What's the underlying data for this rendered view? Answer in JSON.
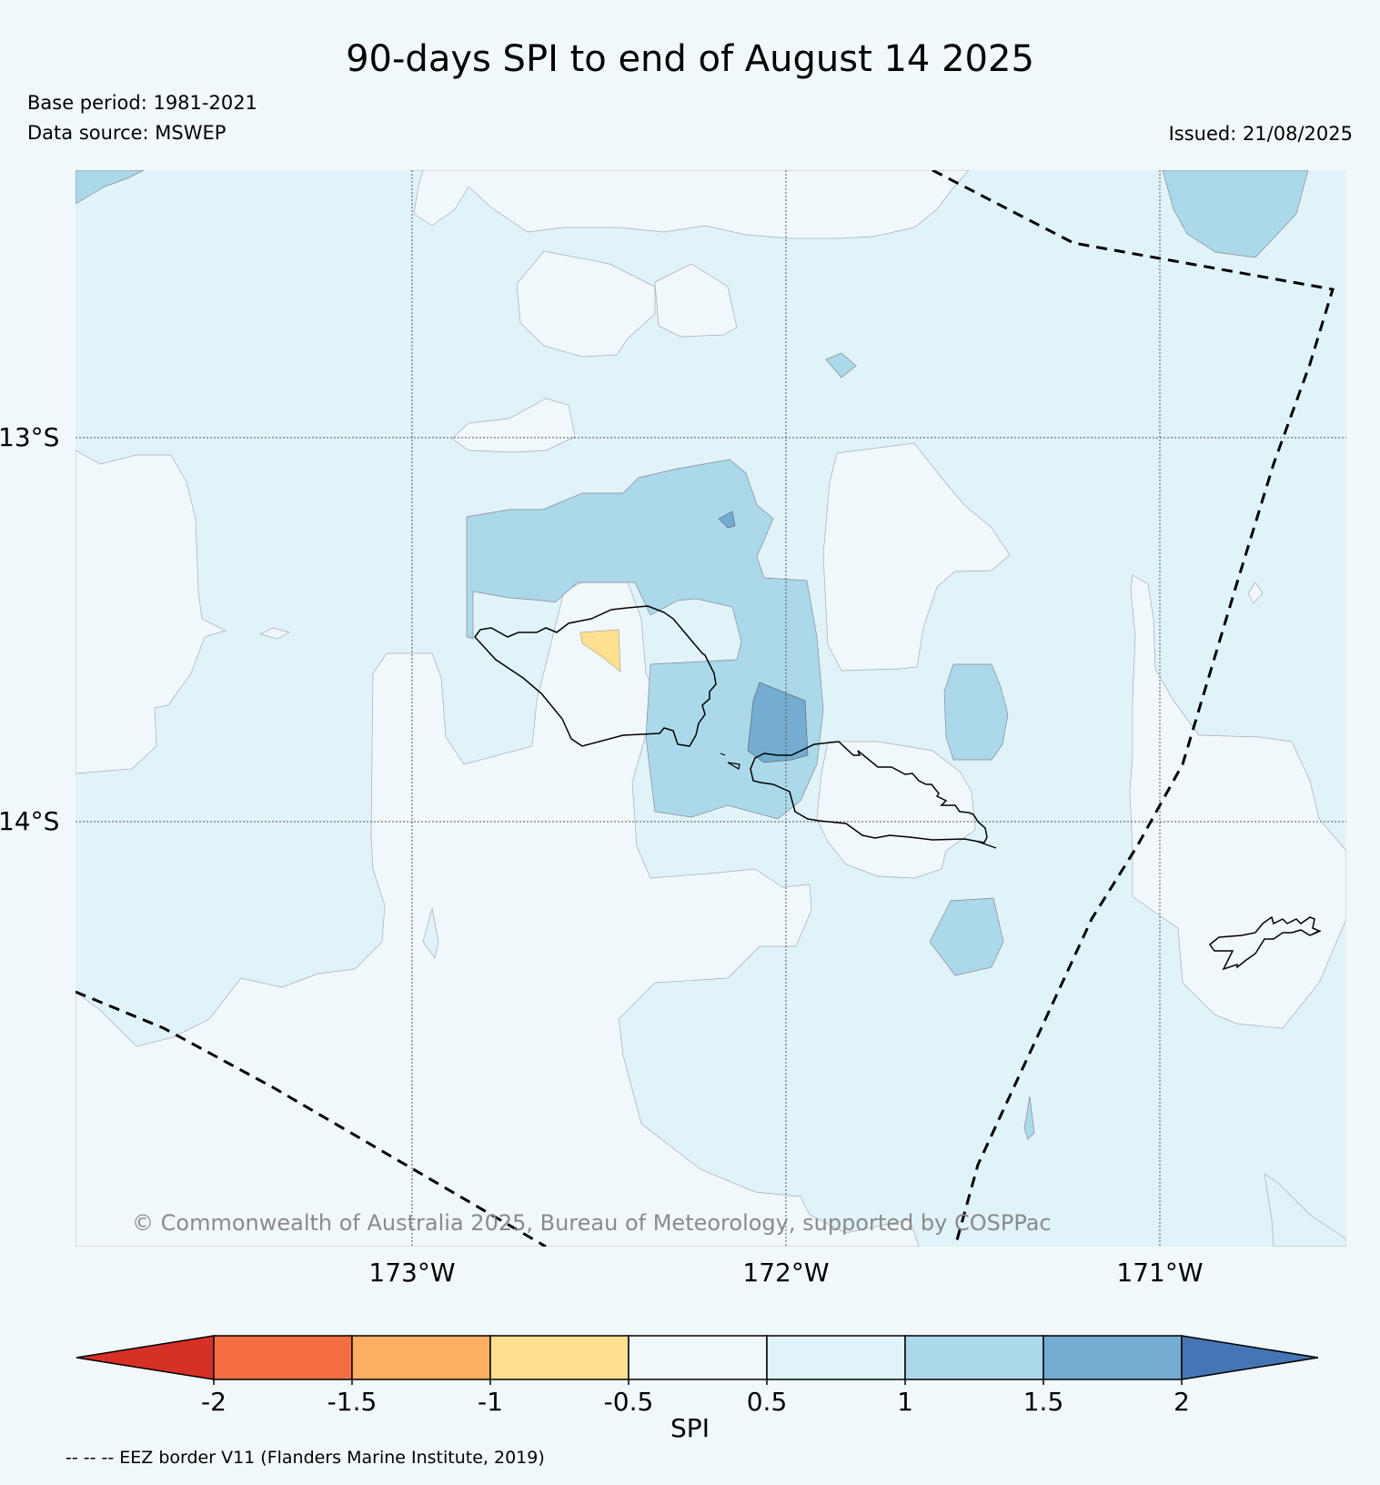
{
  "header": {
    "title": "90-days SPI to end of August 14 2025",
    "base_period": "Base period: 1981-2021",
    "data_source": "Data source: MSWEP",
    "issued": "Issued: 21/08/2025"
  },
  "map": {
    "lat_labels": [
      "13°S",
      "14°S"
    ],
    "lon_labels": [
      "173°W",
      "172°W",
      "171°W"
    ],
    "copyright": "© Commonwealth of Australia 2025, Bureau of Meteorology, supported by COSPPac"
  },
  "colorbar": {
    "label": "SPI",
    "ticks": [
      "-2",
      "-1.5",
      "-1",
      "-0.5",
      "0.5",
      "1",
      "1.5",
      "2"
    ],
    "colors": [
      "#d73027",
      "#f46d43",
      "#fdae61",
      "#fee090",
      "#f1f8fb",
      "#e0f3f8",
      "#abd9e9",
      "#74add1",
      "#4575b4"
    ]
  },
  "footer": {
    "eez_note": "-- -- -- EEZ border V11 (Flanders Marine Institute, 2019)"
  }
}
